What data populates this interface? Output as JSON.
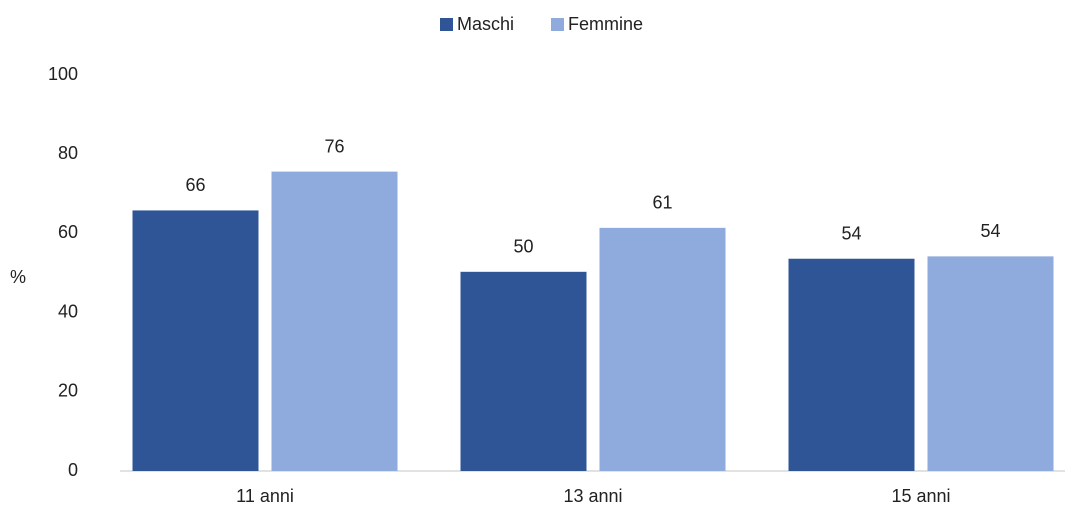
{
  "chart_data": {
    "type": "bar",
    "y_label": "%",
    "categories": [
      "11 anni",
      "13 anni",
      "15 anni"
    ],
    "series": [
      {
        "name": "Maschi",
        "color": "#2f5597",
        "values": [
          65.8,
          50.3,
          53.6
        ],
        "value_labels": [
          "66",
          "50",
          "54"
        ]
      },
      {
        "name": "Femmine",
        "color": "#8faadc",
        "values": [
          75.6,
          61.4,
          54.2
        ],
        "value_labels": [
          "76",
          "61",
          "54"
        ]
      }
    ],
    "ylim": [
      0,
      100
    ],
    "yticks": [
      0,
      20,
      40,
      60,
      80,
      100
    ],
    "grid": false,
    "legend": "top"
  }
}
